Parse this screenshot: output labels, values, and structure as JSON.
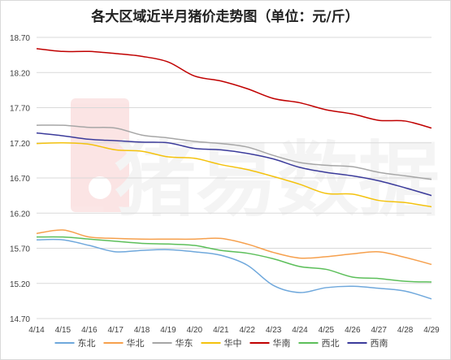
{
  "chart_data": {
    "type": "line",
    "title": "各大区域近半月猪价走势图（单位：元/斤）",
    "watermark": "猪易数据",
    "xlabel": "",
    "ylabel": "",
    "categories": [
      "4/14",
      "4/15",
      "4/16",
      "4/17",
      "4/18",
      "4/19",
      "4/20",
      "4/21",
      "4/22",
      "4/23",
      "4/24",
      "4/25",
      "4/26",
      "4/27",
      "4/28",
      "4/29"
    ],
    "ylim": [
      14.7,
      18.7
    ],
    "yticks": [
      "18.70",
      "18.20",
      "17.70",
      "17.20",
      "16.70",
      "16.20",
      "15.70",
      "15.20",
      "14.70"
    ],
    "grid": true,
    "legend_position": "bottom",
    "series": [
      {
        "name": "东北",
        "color": "#6fa8dc",
        "values": [
          15.82,
          15.82,
          15.74,
          15.65,
          15.67,
          15.68,
          15.65,
          15.6,
          15.46,
          15.17,
          15.07,
          15.14,
          15.16,
          15.13,
          15.09,
          14.98
        ]
      },
      {
        "name": "华北",
        "color": "#f6a04d",
        "values": [
          15.91,
          15.96,
          15.86,
          15.84,
          15.83,
          15.83,
          15.83,
          15.84,
          15.76,
          15.64,
          15.56,
          15.58,
          15.62,
          15.65,
          15.57,
          15.47
        ]
      },
      {
        "name": "华东",
        "color": "#a6a6a6",
        "values": [
          17.45,
          17.45,
          17.42,
          17.41,
          17.31,
          17.27,
          17.22,
          17.19,
          17.14,
          17.02,
          16.92,
          16.88,
          16.86,
          16.78,
          16.73,
          16.68
        ]
      },
      {
        "name": "华中",
        "color": "#f4c20d",
        "values": [
          17.19,
          17.2,
          17.18,
          17.1,
          17.08,
          17.0,
          16.98,
          16.89,
          16.82,
          16.72,
          16.61,
          16.48,
          16.47,
          16.38,
          16.35,
          16.29
        ]
      },
      {
        "name": "华南",
        "color": "#c00000",
        "values": [
          18.54,
          18.5,
          18.5,
          18.47,
          18.43,
          18.35,
          18.15,
          18.08,
          17.97,
          17.83,
          17.77,
          17.67,
          17.61,
          17.52,
          17.51,
          17.41
        ]
      },
      {
        "name": "西北",
        "color": "#5cbf5a",
        "values": [
          15.86,
          15.86,
          15.83,
          15.8,
          15.77,
          15.76,
          15.74,
          15.67,
          15.63,
          15.55,
          15.44,
          15.4,
          15.29,
          15.27,
          15.23,
          15.22
        ]
      },
      {
        "name": "西南",
        "color": "#3b3b9b",
        "values": [
          17.34,
          17.3,
          17.25,
          17.23,
          17.21,
          17.2,
          17.12,
          17.1,
          17.05,
          16.97,
          16.85,
          16.78,
          16.73,
          16.66,
          16.56,
          16.45
        ]
      }
    ]
  }
}
